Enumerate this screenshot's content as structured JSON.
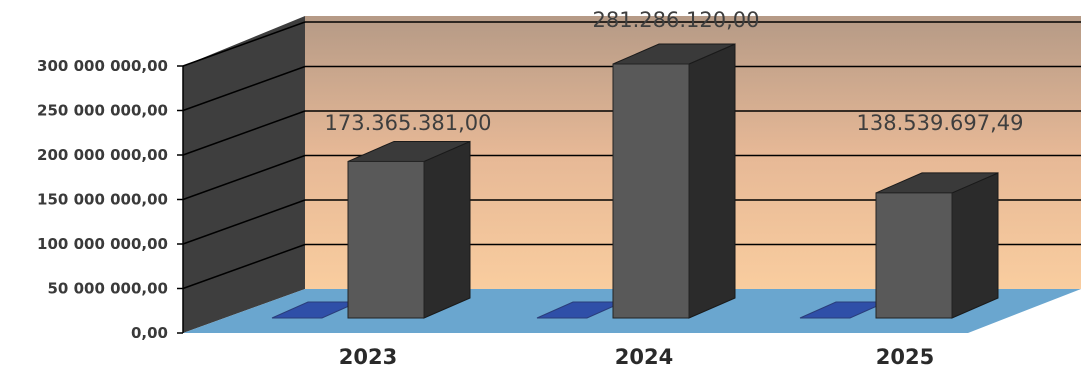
{
  "chart_data": {
    "type": "bar",
    "categories": [
      "2023",
      "2024",
      "2025"
    ],
    "values": [
      173365381.0,
      281286120.0,
      138539697.49
    ],
    "data_labels": [
      "173.365.381,00",
      "281.286.120,00",
      "138.539.697,49"
    ],
    "ylim": [
      0,
      300000000
    ],
    "y_ticks": [
      0,
      50000000,
      100000000,
      150000000,
      200000000,
      250000000,
      300000000
    ],
    "y_tick_labels": [
      "0,00",
      "50 000 000,00",
      "100 000 000,00",
      "150 000 000,00",
      "200 000 000,00",
      "250 000 000,00",
      "300 000 000,00"
    ],
    "grid": true,
    "style": "3d-column",
    "colors": {
      "bar_front": "#595959",
      "bar_side": "#2b2b2b",
      "bar_top": "#3a3a3a",
      "floor": "#6aa6cf",
      "floor_shadow": "#2f4fa8",
      "wall_top": "#b59a86",
      "wall_bottom": "#f7c79a",
      "side_wall": "#3c3c3c"
    }
  }
}
